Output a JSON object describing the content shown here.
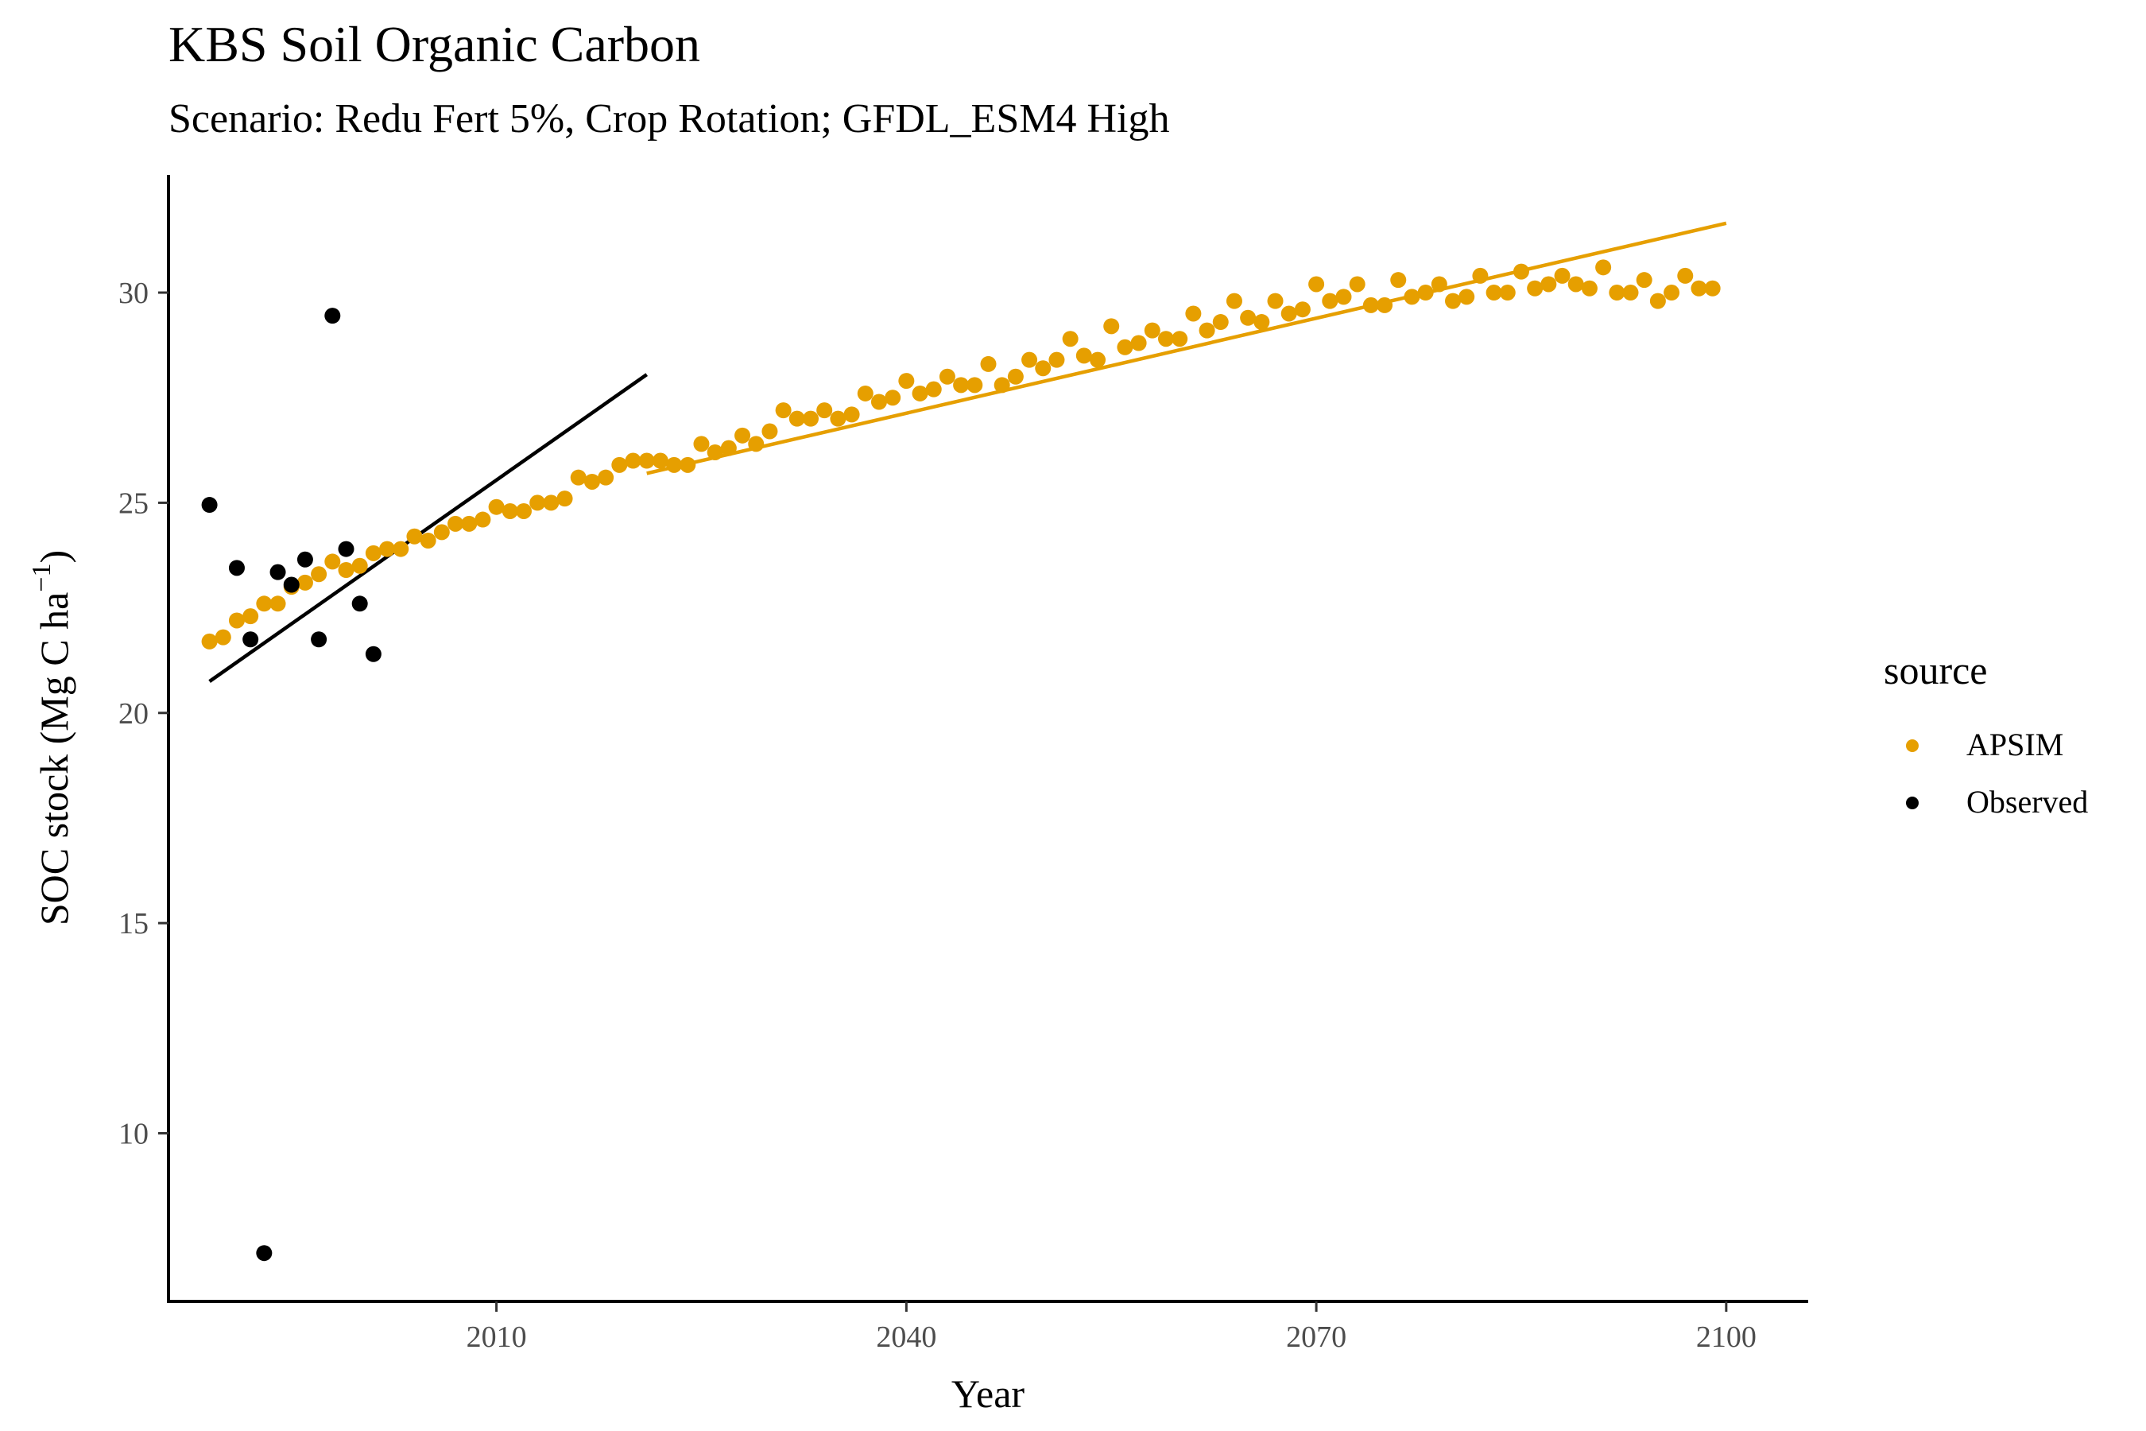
{
  "chart_data": {
    "type": "scatter",
    "title": "KBS Soil Organic Carbon",
    "subtitle": "Scenario: Redu Fert 5%, Crop Rotation; GFDL_ESM4 High",
    "xlabel": "Year",
    "ylabel_main": "SOC stock (Mg C ha",
    "ylabel_sup": "−1",
    "ylabel_close": ")",
    "xlim": [
      1986,
      2106
    ],
    "ylim": [
      6.0,
      32.8
    ],
    "x_ticks": [
      2010,
      2040,
      2070,
      2100
    ],
    "y_ticks": [
      10,
      15,
      20,
      25,
      30
    ],
    "grid": false,
    "legend": {
      "title": "source",
      "placement": "right",
      "entries": [
        {
          "label": "APSIM",
          "color": "#E69F00"
        },
        {
          "label": "Observed",
          "color": "#000000"
        }
      ]
    },
    "series": [
      {
        "name": "APSIM",
        "color": "#E69F00",
        "x": [
          1989,
          1990,
          1991,
          1992,
          1993,
          1994,
          1995,
          1996,
          1997,
          1998,
          1999,
          2000,
          2001,
          2002,
          2003,
          2004,
          2005,
          2006,
          2007,
          2008,
          2009,
          2010,
          2011,
          2012,
          2013,
          2014,
          2015,
          2016,
          2017,
          2018,
          2019,
          2020,
          2021,
          2022,
          2023,
          2024,
          2025,
          2026,
          2027,
          2028,
          2029,
          2030,
          2031,
          2032,
          2033,
          2034,
          2035,
          2036,
          2037,
          2038,
          2039,
          2040,
          2041,
          2042,
          2043,
          2044,
          2045,
          2046,
          2047,
          2048,
          2049,
          2050,
          2051,
          2052,
          2053,
          2054,
          2055,
          2056,
          2057,
          2058,
          2059,
          2060,
          2061,
          2062,
          2063,
          2064,
          2065,
          2066,
          2067,
          2068,
          2069,
          2070,
          2071,
          2072,
          2073,
          2074,
          2075,
          2076,
          2077,
          2078,
          2079,
          2080,
          2081,
          2082,
          2083,
          2084,
          2085,
          2086,
          2087,
          2088,
          2089,
          2090,
          2091,
          2092,
          2093,
          2094,
          2095,
          2096,
          2097,
          2098,
          2099
        ],
        "y": [
          21.7,
          21.8,
          22.2,
          22.3,
          22.6,
          22.6,
          23.0,
          23.1,
          23.3,
          23.6,
          23.4,
          23.5,
          23.8,
          23.9,
          23.9,
          24.2,
          24.1,
          24.3,
          24.5,
          24.5,
          24.6,
          24.9,
          24.8,
          24.8,
          25.0,
          25.0,
          25.1,
          25.6,
          25.5,
          25.6,
          25.9,
          26.0,
          26.0,
          26.0,
          25.9,
          25.9,
          26.4,
          26.2,
          26.3,
          26.6,
          26.4,
          26.7,
          27.2,
          27.0,
          27.0,
          27.2,
          27.0,
          27.1,
          27.6,
          27.4,
          27.5,
          27.9,
          27.6,
          27.7,
          28.0,
          27.8,
          27.8,
          28.3,
          27.8,
          28.0,
          28.4,
          28.2,
          28.4,
          28.9,
          28.5,
          28.4,
          29.2,
          28.7,
          28.8,
          29.1,
          28.9,
          28.9,
          29.5,
          29.1,
          29.3,
          29.8,
          29.4,
          29.3,
          29.8,
          29.5,
          29.6,
          30.2,
          29.8,
          29.9,
          30.2,
          29.7,
          29.7,
          30.3,
          29.9,
          30.0,
          30.2,
          29.8,
          29.9,
          30.4,
          30.0,
          30.0,
          30.5,
          30.1,
          30.2,
          30.4,
          30.2,
          30.1,
          30.6,
          30.0,
          30.0,
          30.3,
          29.8,
          30.0,
          30.4,
          30.1,
          30.1
        ]
      },
      {
        "name": "Observed",
        "color": "#000000",
        "x": [
          1989,
          1991,
          1992,
          1993,
          1994,
          1995,
          1996,
          1997,
          1998,
          1999,
          2000,
          2001
        ],
        "y": [
          24.95,
          23.45,
          21.75,
          7.15,
          23.35,
          23.05,
          23.65,
          21.75,
          29.45,
          23.9,
          22.6,
          21.4
        ]
      }
    ],
    "trend_lines": [
      {
        "name": "APSIM",
        "color": "#E69F00",
        "x": [
          2021,
          2100
        ],
        "y": [
          25.7,
          31.65
        ]
      },
      {
        "name": "Observed",
        "color": "#000000",
        "x": [
          1989,
          2021
        ],
        "y": [
          20.75,
          28.05
        ]
      }
    ]
  }
}
